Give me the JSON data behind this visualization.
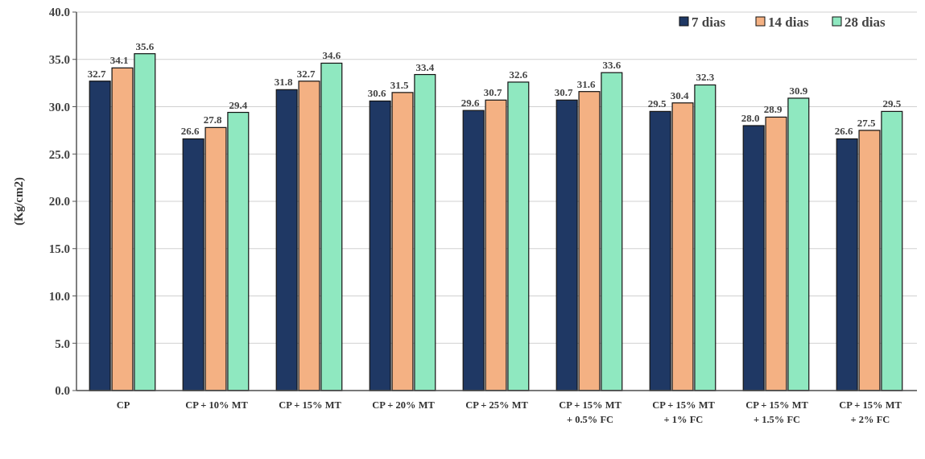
{
  "chart_data": {
    "type": "bar",
    "ylabel": "(Kg/cm2)",
    "categories": [
      "CP",
      "CP + 10% MT",
      "CP + 15% MT",
      "CP + 20% MT",
      "CP + 25% MT",
      "CP + 15% MT\n+ 0.5% FC",
      "CP + 15% MT\n+ 1% FC",
      "CP + 15% MT\n+ 1.5% FC",
      "CP + 15% MT\n+ 2% FC"
    ],
    "series": [
      {
        "name": "7 dias",
        "color": "#1f3864",
        "values": [
          32.7,
          26.6,
          31.8,
          30.6,
          29.6,
          30.7,
          29.5,
          28.0,
          26.6
        ],
        "value_labels": [
          "32.7",
          "26.6",
          "31.8",
          "30.6",
          "29.6",
          "30.7",
          "29.5",
          "28.0",
          "26.6"
        ]
      },
      {
        "name": "14 dias",
        "color": "#f4b183",
        "values": [
          34.1,
          27.8,
          32.7,
          31.5,
          30.7,
          31.6,
          30.4,
          28.9,
          27.5
        ],
        "value_labels": [
          "34.1",
          "27.8",
          "32.7",
          "31.5",
          "30.7",
          "31.6",
          "30.4",
          "28.9",
          "27.5"
        ]
      },
      {
        "name": "28 dias",
        "color": "#8fe8c0",
        "values": [
          35.6,
          29.4,
          34.6,
          33.4,
          32.6,
          33.6,
          32.3,
          30.9,
          29.5
        ],
        "value_labels": [
          "35.6",
          "29.4",
          "34.6",
          "33.4",
          "32.6",
          "33.6",
          "32.3",
          "30.9",
          "29.5"
        ]
      }
    ],
    "ylim": [
      0,
      40
    ],
    "yticks": [
      {
        "value": 0,
        "label": "0.0"
      },
      {
        "value": 5,
        "label": "5.0"
      },
      {
        "value": 10,
        "label": "10.0"
      },
      {
        "value": 15,
        "label": "15.0"
      },
      {
        "value": 20,
        "label": "20.0"
      },
      {
        "value": 25,
        "label": "25.0"
      },
      {
        "value": 30,
        "label": "30.0"
      },
      {
        "value": 35,
        "label": "35.0"
      },
      {
        "value": 40,
        "label": "40.0"
      }
    ],
    "grid": "y",
    "legend": "top right"
  }
}
